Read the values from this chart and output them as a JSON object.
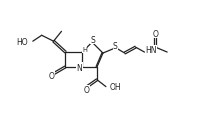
{
  "bg_color": "#ffffff",
  "line_color": "#222222",
  "lw": 0.9,
  "font_size": 5.5,
  "fig_w": 1.99,
  "fig_h": 1.15,
  "dpi": 100,
  "xlim": [
    0,
    19.9
  ],
  "ylim": [
    0,
    11.5
  ]
}
